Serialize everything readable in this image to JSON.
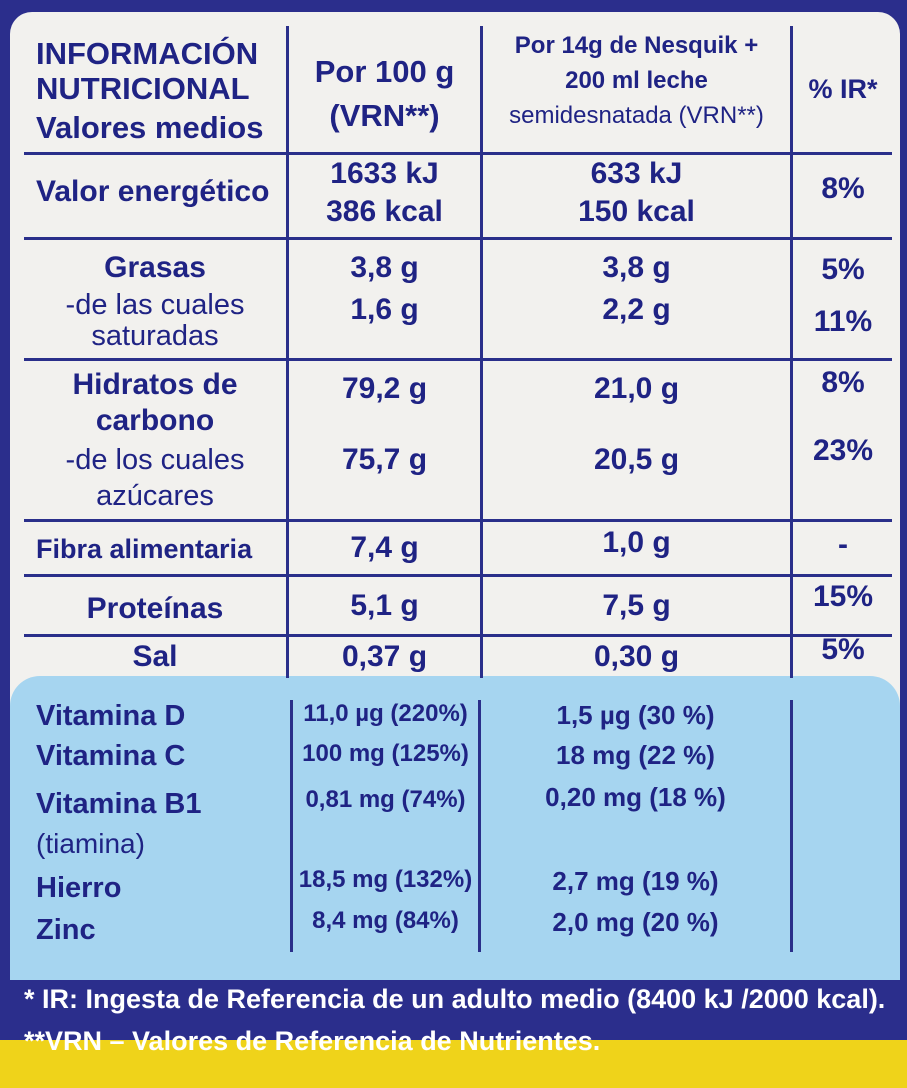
{
  "header": {
    "title1": "INFORMACIÓN",
    "title2": "NUTRICIONAL",
    "title3": "Valores medios",
    "col100_1": "Por 100 g",
    "col100_2": "(VRN**)",
    "colserv_1": "Por 14g de Nesquik +",
    "colserv_2": "200 ml leche",
    "colserv_3": "semidesnatada (VRN**)",
    "colir": "% IR*"
  },
  "rows": {
    "energy": {
      "label": "Valor energético",
      "v100a": "1633 kJ",
      "v100b": "386 kcal",
      "vsa": "633 kJ",
      "vsb": "150 kcal",
      "ir": "8%"
    },
    "fat": {
      "label": "Grasas",
      "v100": "3,8 g",
      "vs": "3,8 g",
      "ir": "5%"
    },
    "sat": {
      "label1": "-de las cuales",
      "label2": "saturadas",
      "v100": "1,6 g",
      "vs": "2,2 g",
      "ir": "11%"
    },
    "carbs": {
      "label1": "Hidratos de",
      "label2": "carbono",
      "v100": "79,2 g",
      "vs": "21,0 g",
      "ir": "8%"
    },
    "sugars": {
      "label1": "-de los cuales",
      "label2": "azúcares",
      "v100": "75,7 g",
      "vs": "20,5 g",
      "ir": "23%"
    },
    "fiber": {
      "label": "Fibra alimentaria",
      "v100": "7,4 g",
      "vs": "1,0 g",
      "ir": "-"
    },
    "protein": {
      "label": "Proteínas",
      "v100": "5,1 g",
      "vs": "7,5 g",
      "ir": "15%"
    },
    "salt": {
      "label": "Sal",
      "v100": "0,37 g",
      "vs": "0,30 g",
      "ir": "5%"
    }
  },
  "vitamins": {
    "d": {
      "label": "Vitamina D",
      "v100": "11,0 µg (220%)",
      "vs": "1,5 µg (30 %)"
    },
    "c": {
      "label": "Vitamina C",
      "v100": "100 mg (125%)",
      "vs": "18 mg (22 %)"
    },
    "b1": {
      "label": "Vitamina B1",
      "sub": "(tiamina)",
      "v100": "0,81 mg (74%)",
      "vs": "0,20 mg (18 %)"
    },
    "iron": {
      "label": "Hierro",
      "v100": "18,5 mg (132%)",
      "vs": "2,7 mg (19 %)"
    },
    "zinc": {
      "label": "Zinc",
      "v100": "8,4 mg (84%)",
      "vs": "2,0 mg (20 %)"
    }
  },
  "footer": {
    "line1": "* IR: Ingesta de Referencia de un adulto medio (8400 kJ /2000 kcal).",
    "line2": "**VRN – Valores de Referencia de Nutrientes."
  },
  "colors": {
    "ink": "#1f2384",
    "panel": "#2b2e8c",
    "card": "#f2f1ee",
    "vitamin_band": "#a6d5f0",
    "yellow": "#f5d90a"
  }
}
